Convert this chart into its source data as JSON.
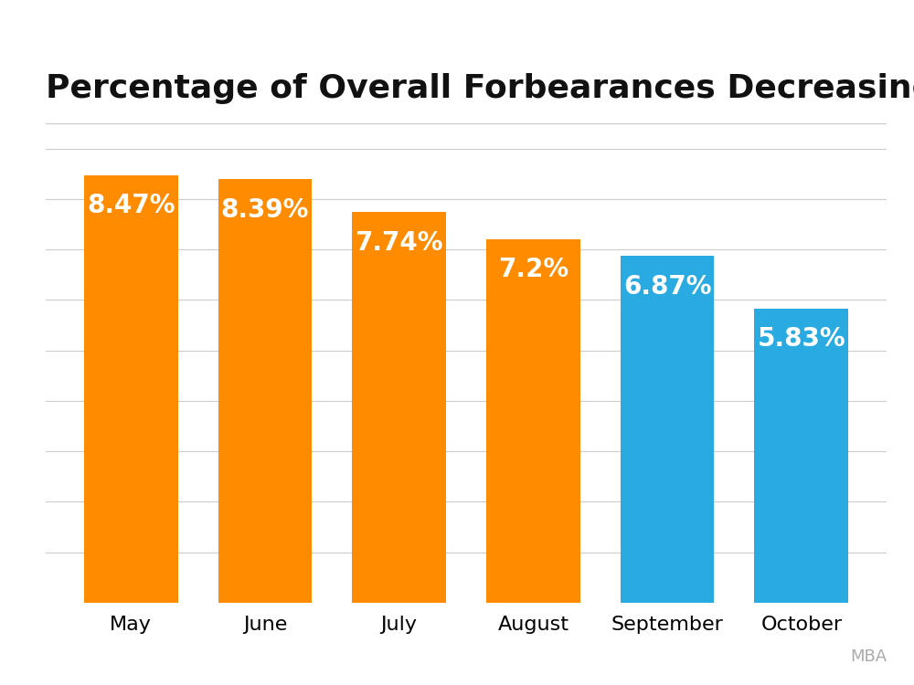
{
  "categories": [
    "May",
    "June",
    "July",
    "August",
    "September",
    "October"
  ],
  "values": [
    8.47,
    8.39,
    7.74,
    7.2,
    6.87,
    5.83
  ],
  "labels": [
    "8.47%",
    "8.39%",
    "7.74%",
    "7.2%",
    "6.87%",
    "5.83%"
  ],
  "bar_colors": [
    "#FF8C00",
    "#FF8C00",
    "#FF8C00",
    "#FF8C00",
    "#29ABE2",
    "#29ABE2"
  ],
  "title": "Percentage of Overall Forbearances Decreasing",
  "title_fontsize": 26,
  "label_fontsize": 20,
  "tick_fontsize": 16,
  "label_color": "#FFFFFF",
  "background_color": "#FFFFFF",
  "ylim": [
    0,
    9.5
  ],
  "grid_color": "#CCCCCC",
  "grid_yticks": [
    1,
    2,
    3,
    4,
    5,
    6,
    7,
    8,
    9
  ],
  "mba_text": "MBA",
  "mba_color": "#AAAAAA",
  "mba_fontsize": 13
}
